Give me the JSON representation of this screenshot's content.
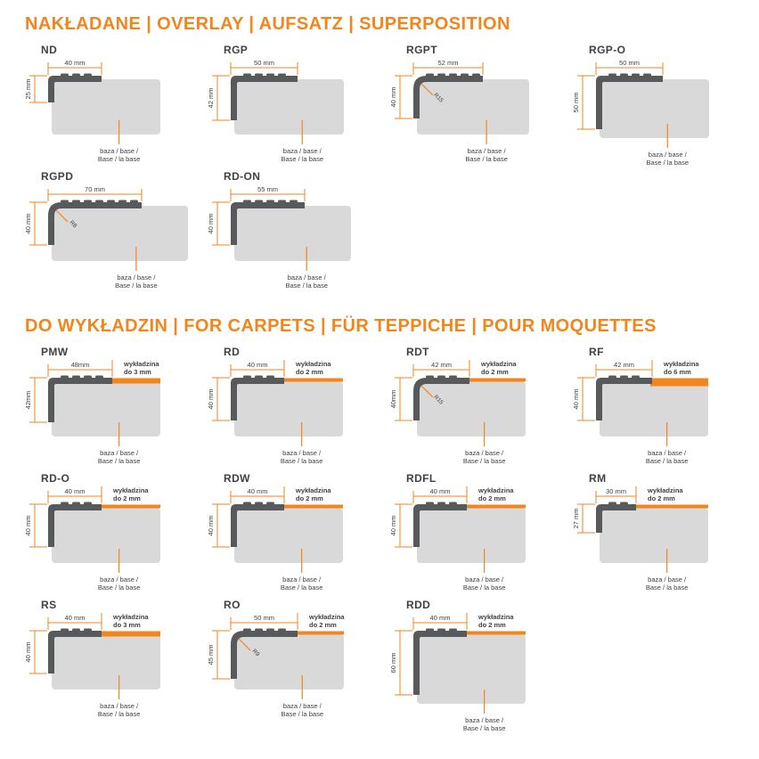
{
  "colors": {
    "accent_orange": "#F0861C",
    "profile_dark": "#58595B",
    "base_gray": "#D9D9D9",
    "text_dark": "#414042"
  },
  "common": {
    "base_label_line1": "baza / base /",
    "base_label_line2": "Base / la base"
  },
  "sections": [
    {
      "title": "NAKŁADANE | OVERLAY | AUFSATZ | SUPERPOSITION",
      "profiles": [
        {
          "name": "ND",
          "width_label": "40 mm",
          "height_label": "25 mm",
          "width_mm": 40,
          "height_mm": 25,
          "radius_label": null,
          "carpet": null
        },
        {
          "name": "RGP",
          "width_label": "50 mm",
          "height_label": "42 mm",
          "width_mm": 50,
          "height_mm": 42,
          "radius_label": null,
          "carpet": null
        },
        {
          "name": "RGPT",
          "width_label": "52 mm",
          "height_label": "40 mm",
          "width_mm": 52,
          "height_mm": 40,
          "radius_label": "R15",
          "carpet": null
        },
        {
          "name": "RGP-O",
          "width_label": "50 mm",
          "height_label": "50 mm",
          "width_mm": 50,
          "height_mm": 50,
          "radius_label": null,
          "carpet": null
        },
        {
          "name": "RGPD",
          "width_label": "70 mm",
          "height_label": "40 mm",
          "width_mm": 70,
          "height_mm": 40,
          "radius_label": "R8",
          "carpet": null
        },
        {
          "name": "RD-ON",
          "width_label": "55 mm",
          "height_label": "40 mm",
          "width_mm": 55,
          "height_mm": 40,
          "radius_label": null,
          "carpet": null
        }
      ]
    },
    {
      "title": "DO WYKŁADZIN | FOR CARPETS | FÜR TEPPICHE | POUR MOQUETTES",
      "profiles": [
        {
          "name": "PMW",
          "width_label": "48mm",
          "height_label": "42mm",
          "width_mm": 48,
          "height_mm": 42,
          "radius_label": null,
          "carpet": {
            "line1": "wykładzina",
            "line2": "do 3 mm",
            "mm": 3
          }
        },
        {
          "name": "RD",
          "width_label": "40 mm",
          "height_label": "40 mm",
          "width_mm": 40,
          "height_mm": 40,
          "radius_label": null,
          "carpet": {
            "line1": "wykładzina",
            "line2": "do 2 mm",
            "mm": 2
          }
        },
        {
          "name": "RDT",
          "width_label": "42 mm",
          "height_label": "40mm",
          "width_mm": 42,
          "height_mm": 40,
          "radius_label": "R15",
          "carpet": {
            "line1": "wykładzina",
            "line2": "do 2 mm",
            "mm": 2
          }
        },
        {
          "name": "RF",
          "width_label": "42 mm",
          "height_label": "40 mm",
          "width_mm": 42,
          "height_mm": 40,
          "radius_label": null,
          "carpet": {
            "line1": "wykładzina",
            "line2": "do 6 mm",
            "mm": 6
          }
        },
        {
          "name": "RD-O",
          "width_label": "40 mm",
          "height_label": "40 mm",
          "width_mm": 40,
          "height_mm": 40,
          "radius_label": null,
          "carpet": {
            "line1": "wykładzina",
            "line2": "do 2 mm",
            "mm": 2
          }
        },
        {
          "name": "RDW",
          "width_label": "40 mm",
          "height_label": "40 mm",
          "width_mm": 40,
          "height_mm": 40,
          "radius_label": null,
          "carpet": {
            "line1": "wykładzina",
            "line2": "do 2 mm",
            "mm": 2
          }
        },
        {
          "name": "RDFL",
          "width_label": "40 mm",
          "height_label": "40 mm",
          "width_mm": 40,
          "height_mm": 40,
          "radius_label": null,
          "carpet": {
            "line1": "wykładzina",
            "line2": "do 2 mm",
            "mm": 2
          }
        },
        {
          "name": "RM",
          "width_label": "30 mm",
          "height_label": "27 mm",
          "width_mm": 30,
          "height_mm": 27,
          "radius_label": null,
          "carpet": {
            "line1": "wykładzina",
            "line2": "do 2 mm",
            "mm": 2
          }
        },
        {
          "name": "RS",
          "width_label": "40 mm",
          "height_label": "40 mm",
          "width_mm": 40,
          "height_mm": 40,
          "radius_label": null,
          "carpet": {
            "line1": "wykładzina",
            "line2": "do 3 mm",
            "mm": 3
          }
        },
        {
          "name": "RO",
          "width_label": "50 mm",
          "height_label": "45 mm",
          "width_mm": 50,
          "height_mm": 45,
          "radius_label": "R9",
          "carpet": {
            "line1": "wykładzina",
            "line2": "do 2 mm",
            "mm": 2
          }
        },
        {
          "name": "RDD",
          "width_label": "40 mm",
          "height_label": "60 mm",
          "width_mm": 40,
          "height_mm": 60,
          "radius_label": null,
          "carpet": {
            "line1": "wykładzina",
            "line2": "do 2 mm",
            "mm": 2
          }
        }
      ]
    }
  ]
}
